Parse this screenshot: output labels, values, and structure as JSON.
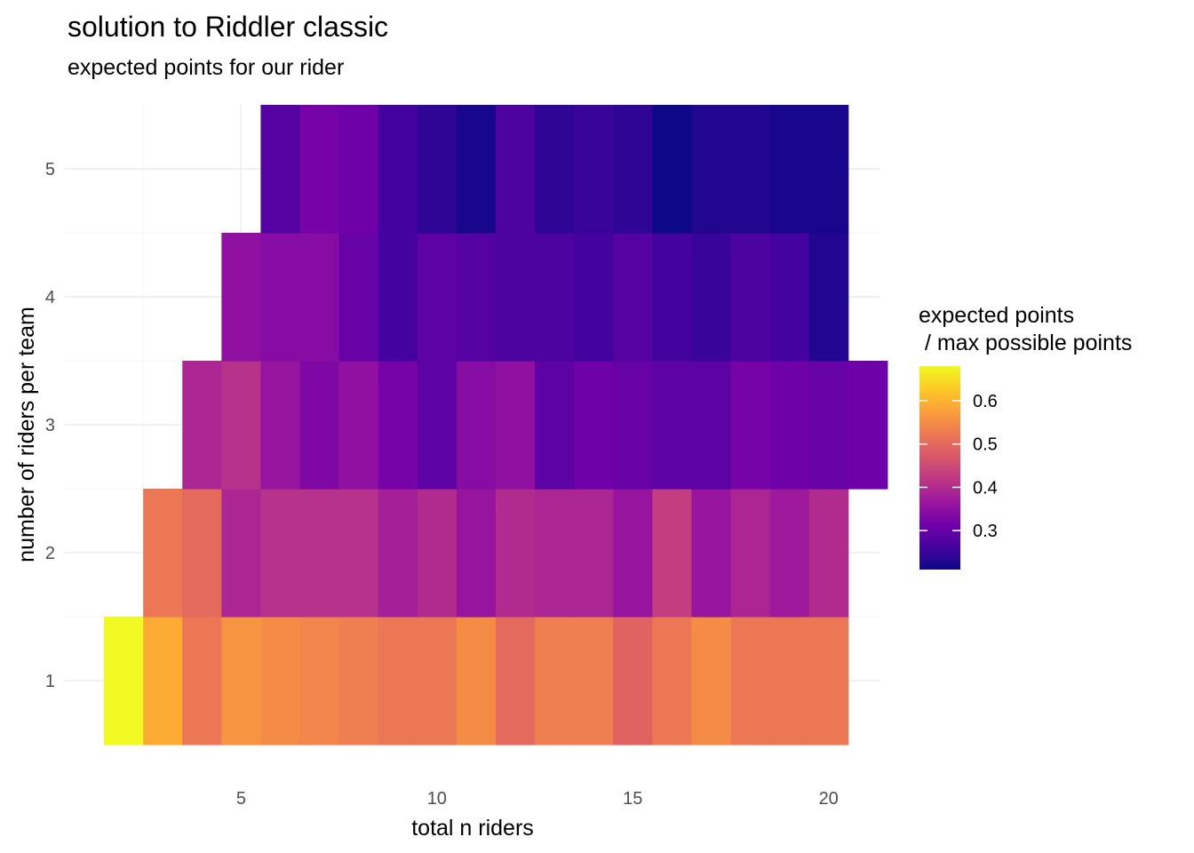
{
  "chart_data": {
    "type": "heatmap",
    "title": "solution to Riddler classic",
    "subtitle": "expected points for our rider",
    "xlabel": "total n riders",
    "ylabel": "number of riders per team",
    "x_ticks": [
      5,
      10,
      15,
      20
    ],
    "y_ticks": [
      1,
      2,
      3,
      4,
      5
    ],
    "xlim": [
      0.5,
      21.3
    ],
    "ylim": [
      0.5,
      5.5
    ],
    "grid": true,
    "legend": {
      "title_lines": [
        "expected points",
        " / max possible points"
      ],
      "position": "right",
      "min": 0.21,
      "max": 0.68,
      "ticks": [
        0.3,
        0.4,
        0.5,
        0.6
      ],
      "palette": "plasma"
    },
    "rows": [
      {
        "y": 1,
        "x_start": 2,
        "values": [
          0.68,
          0.59,
          0.52,
          0.56,
          0.55,
          0.54,
          0.53,
          0.52,
          0.52,
          0.55,
          0.5,
          0.53,
          0.53,
          0.49,
          0.52,
          0.55,
          0.52,
          0.52,
          0.52
        ]
      },
      {
        "y": 2,
        "x_start": 3,
        "values": [
          0.52,
          0.5,
          0.39,
          0.41,
          0.41,
          0.41,
          0.38,
          0.4,
          0.36,
          0.4,
          0.39,
          0.39,
          0.36,
          0.43,
          0.36,
          0.39,
          0.37,
          0.4
        ]
      },
      {
        "y": 3,
        "x_start": 4,
        "values": [
          0.39,
          0.41,
          0.36,
          0.33,
          0.35,
          0.32,
          0.29,
          0.34,
          0.35,
          0.29,
          0.31,
          0.3,
          0.29,
          0.29,
          0.32,
          0.31,
          0.3,
          0.31
        ]
      },
      {
        "y": 4,
        "x_start": 5,
        "values": [
          0.35,
          0.34,
          0.34,
          0.3,
          0.26,
          0.29,
          0.28,
          0.27,
          0.27,
          0.26,
          0.28,
          0.26,
          0.25,
          0.27,
          0.26,
          0.23
        ]
      },
      {
        "y": 5,
        "x_start": 6,
        "values": [
          0.28,
          0.32,
          0.31,
          0.26,
          0.24,
          0.22,
          0.27,
          0.24,
          0.25,
          0.24,
          0.21,
          0.23,
          0.23,
          0.22,
          0.22
        ]
      }
    ]
  }
}
